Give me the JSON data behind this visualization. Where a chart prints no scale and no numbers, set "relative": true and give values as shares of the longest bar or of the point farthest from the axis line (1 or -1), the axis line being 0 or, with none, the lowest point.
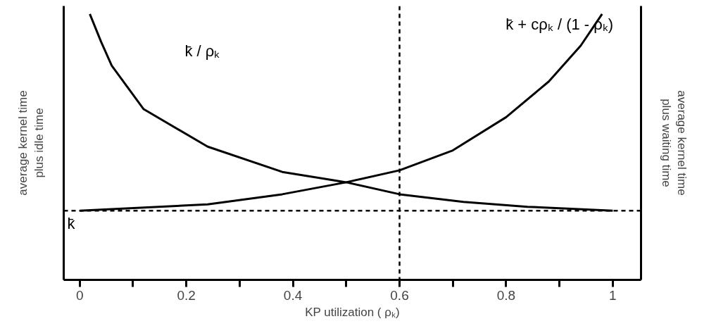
{
  "chart_data": {
    "type": "line",
    "relative": true,
    "xlabel": "KP utilization ( ρₖ)",
    "ylabel": "average kernel time\nplus idle time",
    "y2label": "average kernel time\nplus waiting time",
    "xlim": [
      -0.03,
      1.053
    ],
    "xticks": [
      0,
      {
        "value": 0.1,
        "label": null
      },
      0.2,
      {
        "value": 0.3,
        "label": null
      },
      0.4,
      {
        "value": 0.5,
        "label": null
      },
      0.6,
      {
        "value": 0.7,
        "label": null
      },
      0.8,
      {
        "value": 0.9,
        "label": null
      },
      1
    ],
    "series": [
      {
        "color": "#000000",
        "x": [
          0.019,
          0.04,
          0.06,
          0.12,
          0.24,
          0.38,
          0.5,
          0.6,
          0.72,
          0.84,
          1.0
        ],
        "values": [
          1,
          0.896,
          0.806,
          0.642,
          0.501,
          0.406,
          0.367,
          0.322,
          0.293,
          0.275,
          0.26
        ]
      },
      {
        "color": "#000000",
        "x": [
          0,
          0.24,
          0.38,
          0.5,
          0.6,
          0.7,
          0.8,
          0.88,
          0.94,
          0.98
        ],
        "values": [
          0.26,
          0.284,
          0.322,
          0.367,
          0.412,
          0.487,
          0.612,
          0.746,
          0.881,
          1
        ]
      }
    ],
    "ref_lines": [
      {
        "axis": "y",
        "value": 0.26,
        "label": "k̄",
        "line_style": "dashed",
        "color": "#000000"
      },
      {
        "axis": "x",
        "value": 0.6,
        "label": null,
        "line_style": "dashed",
        "color": "#000000"
      }
    ],
    "annotations": [
      "k̄ / ρₖ",
      "k̄ + cρₖ / (1 - ρₖ)"
    ],
    "grid": false,
    "marker": "none",
    "line_style": "solid"
  }
}
